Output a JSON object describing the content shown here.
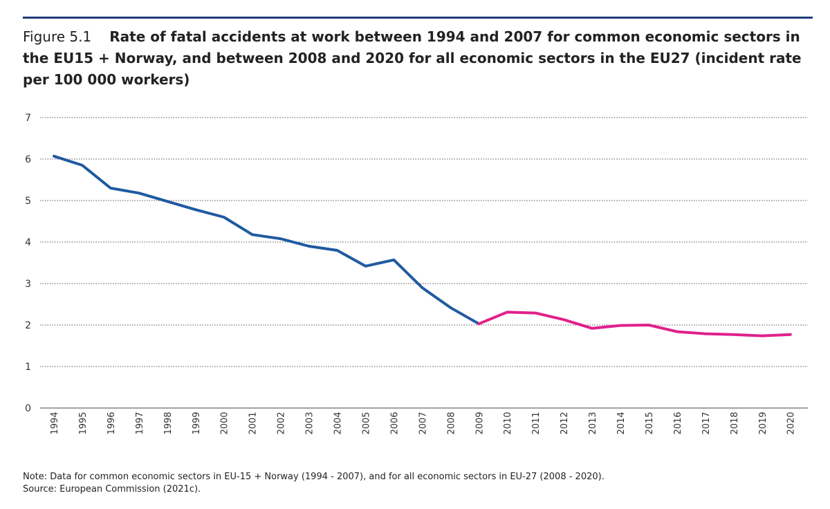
{
  "figure": {
    "label": "Figure 5.1",
    "title": "Rate of fatal accidents at work between 1994 and 2007 for common economic sectors in the EU15 + Norway, and between 2008 and 2020 for all economic sectors in the EU27 (incident rate per 100 000 workers)"
  },
  "colors": {
    "series_1": "#1f5aa0",
    "series_2": "#e0208c",
    "rule": "#1f3d7a"
  },
  "chart_data": {
    "type": "line",
    "title": "",
    "xlabel": "",
    "ylabel": "",
    "ylim": [
      0,
      7
    ],
    "yticks": [
      0,
      1,
      2,
      3,
      4,
      5,
      6,
      7
    ],
    "grid": true,
    "categories": [
      "1994",
      "1995",
      "1996",
      "1997",
      "1998",
      "1999",
      "2000",
      "2001",
      "2002",
      "2003",
      "2004",
      "2005",
      "2006",
      "2007",
      "2008",
      "2009",
      "2010",
      "2011",
      "2012",
      "2013",
      "2014",
      "2015",
      "2016",
      "2017",
      "2018",
      "2019",
      "2020"
    ],
    "series": [
      {
        "color": "#1f5aa0",
        "x": [
          "1994",
          "1995",
          "1996",
          "1997",
          "1998",
          "1999",
          "2000",
          "2001",
          "2002",
          "2003",
          "2004",
          "2005",
          "2006",
          "2007",
          "2008",
          "2009"
        ],
        "values": [
          6.07,
          5.85,
          5.3,
          5.18,
          4.98,
          4.78,
          4.6,
          4.18,
          4.08,
          3.9,
          3.8,
          3.42,
          3.57,
          2.9,
          2.42,
          2.03
        ]
      },
      {
        "color": "#e0208c",
        "x": [
          "2009",
          "2010",
          "2011",
          "2012",
          "2013",
          "2014",
          "2015",
          "2016",
          "2017",
          "2018",
          "2019",
          "2020"
        ],
        "values": [
          2.03,
          2.31,
          2.29,
          2.13,
          1.92,
          1.99,
          2.0,
          1.84,
          1.79,
          1.77,
          1.74,
          1.77
        ]
      }
    ]
  },
  "note": {
    "line1": "Note: Data for common economic sectors in EU-15 + Norway (1994 - 2007), and for all economic sectors in EU-27 (2008 - 2020).",
    "line2": "Source: European Commission (2021c)."
  }
}
